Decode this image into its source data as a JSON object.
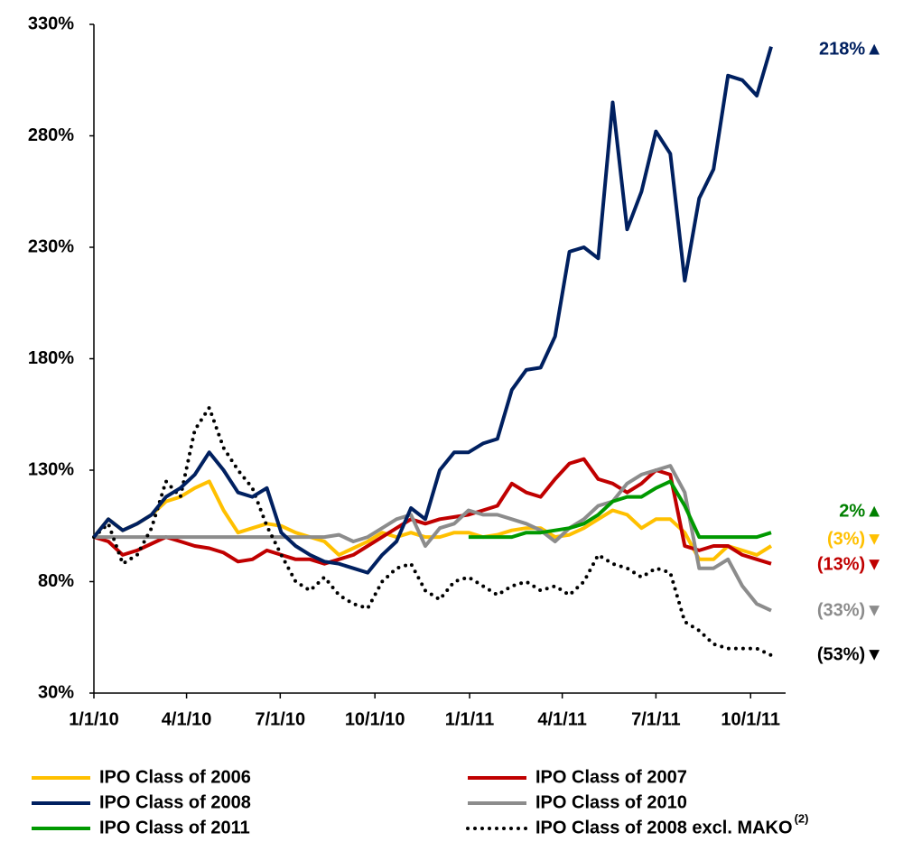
{
  "chart_data": {
    "type": "line",
    "x": [
      "2010-01-01",
      "2010-01-15",
      "2010-01-29",
      "2010-02-12",
      "2010-02-26",
      "2010-03-12",
      "2010-03-26",
      "2010-04-09",
      "2010-04-23",
      "2010-05-07",
      "2010-05-21",
      "2010-06-04",
      "2010-06-18",
      "2010-07-02",
      "2010-07-16",
      "2010-07-30",
      "2010-08-13",
      "2010-08-27",
      "2010-09-10",
      "2010-09-24",
      "2010-10-08",
      "2010-10-22",
      "2010-11-05",
      "2010-11-19",
      "2010-12-03",
      "2010-12-17",
      "2010-12-31",
      "2011-01-14",
      "2011-01-28",
      "2011-02-11",
      "2011-02-25",
      "2011-03-11",
      "2011-03-25",
      "2011-04-08",
      "2011-04-22",
      "2011-05-06",
      "2011-05-20",
      "2011-06-03",
      "2011-06-17",
      "2011-07-01",
      "2011-07-15",
      "2011-07-29",
      "2011-08-12",
      "2011-08-26",
      "2011-09-09",
      "2011-09-23",
      "2011-10-07",
      "2011-10-21"
    ],
    "series": [
      {
        "name": "IPO Class of 2006",
        "color": "#ffc000",
        "dash": "solid",
        "values": [
          100,
          108,
          103,
          106,
          110,
          116,
          118,
          122,
          125,
          112,
          102,
          104,
          106,
          105,
          102,
          100,
          98,
          92,
          95,
          98,
          102,
          100,
          102,
          100,
          100,
          102,
          102,
          100,
          101,
          103,
          104,
          104,
          100,
          101,
          104,
          108,
          112,
          110,
          104,
          108,
          108,
          102,
          90,
          90,
          96,
          94,
          92,
          96
        ]
      },
      {
        "name": "IPO Class of 2007",
        "color": "#c00000",
        "dash": "solid",
        "values": [
          100,
          98,
          92,
          94,
          97,
          100,
          98,
          96,
          95,
          93,
          89,
          90,
          94,
          92,
          90,
          90,
          88,
          90,
          92,
          96,
          100,
          104,
          108,
          106,
          108,
          109,
          110,
          112,
          114,
          124,
          120,
          118,
          126,
          133,
          135,
          126,
          124,
          120,
          124,
          130,
          128,
          96,
          94,
          96,
          96,
          92,
          90,
          88
        ]
      },
      {
        "name": "IPO Class of 2008",
        "color": "#002060",
        "dash": "solid",
        "values": [
          100,
          108,
          103,
          106,
          110,
          118,
          122,
          128,
          138,
          130,
          120,
          118,
          122,
          102,
          96,
          92,
          89,
          88,
          86,
          84,
          92,
          98,
          113,
          108,
          130,
          138,
          138,
          142,
          144,
          166,
          175,
          176,
          190,
          228,
          230,
          225,
          295,
          238,
          255,
          282,
          272,
          215,
          252,
          265,
          307,
          305,
          298,
          320
        ]
      },
      {
        "name": "IPO Class of 2010",
        "color": "#8c8c8c",
        "dash": "solid",
        "values": [
          100,
          100,
          100,
          100,
          100,
          100,
          100,
          100,
          100,
          100,
          100,
          100,
          100,
          100,
          100,
          100,
          100,
          101,
          98,
          100,
          104,
          108,
          110,
          96,
          104,
          106,
          112,
          110,
          110,
          108,
          106,
          103,
          98,
          104,
          108,
          114,
          116,
          124,
          128,
          130,
          132,
          120,
          86,
          86,
          90,
          78,
          70,
          67
        ]
      },
      {
        "name": "IPO Class of 2011",
        "color": "#009900",
        "dash": "solid",
        "values": [
          null,
          null,
          null,
          null,
          null,
          null,
          null,
          null,
          null,
          null,
          null,
          null,
          null,
          null,
          null,
          null,
          null,
          null,
          null,
          null,
          null,
          null,
          null,
          null,
          null,
          null,
          100,
          100,
          100,
          100,
          102,
          102,
          103,
          104,
          106,
          110,
          116,
          118,
          118,
          122,
          125,
          114,
          100,
          100,
          100,
          100,
          100,
          102
        ]
      },
      {
        "name": "IPO Class of 2008 excl. MAKO",
        "name_note": "(2)",
        "color": "#000000",
        "dash": "dotted",
        "values": [
          100,
          106,
          88,
          92,
          104,
          125,
          118,
          148,
          158,
          140,
          130,
          122,
          105,
          92,
          80,
          76,
          82,
          74,
          70,
          68,
          80,
          86,
          88,
          76,
          72,
          80,
          82,
          78,
          74,
          78,
          80,
          76,
          78,
          74,
          80,
          92,
          88,
          86,
          82,
          86,
          84,
          62,
          58,
          52,
          50,
          50,
          50,
          47
        ]
      }
    ],
    "xlim": [
      "2010-01-01",
      "2011-11-04"
    ],
    "xticks": [
      {
        "value": "2010-01-01",
        "label": "1/1/10"
      },
      {
        "value": "2010-04-01",
        "label": "4/1/10"
      },
      {
        "value": "2010-07-01",
        "label": "7/1/10"
      },
      {
        "value": "2010-10-01",
        "label": "10/1/10"
      },
      {
        "value": "2011-01-01",
        "label": "1/1/11"
      },
      {
        "value": "2011-04-01",
        "label": "4/1/11"
      },
      {
        "value": "2011-07-01",
        "label": "7/1/11"
      },
      {
        "value": "2011-10-01",
        "label": "10/1/11"
      }
    ],
    "ylim": [
      30,
      330
    ],
    "yticks": [
      {
        "value": 30,
        "label": "30%"
      },
      {
        "value": 80,
        "label": "80%"
      },
      {
        "value": 130,
        "label": "130%"
      },
      {
        "value": 180,
        "label": "180%"
      },
      {
        "value": 230,
        "label": "230%"
      },
      {
        "value": 280,
        "label": "280%"
      },
      {
        "value": 330,
        "label": "330%"
      }
    ],
    "grid": false,
    "annotations": [
      {
        "text": "218%▲",
        "color": "#002060"
      },
      {
        "text": "2%▲",
        "color": "#008000"
      },
      {
        "text": "(3%)▼",
        "color": "#ffc000"
      },
      {
        "text": "(13%)▼",
        "color": "#c00000"
      },
      {
        "text": "(33%)▼",
        "color": "#8c8c8c"
      },
      {
        "text": "(53%)▼",
        "color": "#000000"
      }
    ]
  }
}
